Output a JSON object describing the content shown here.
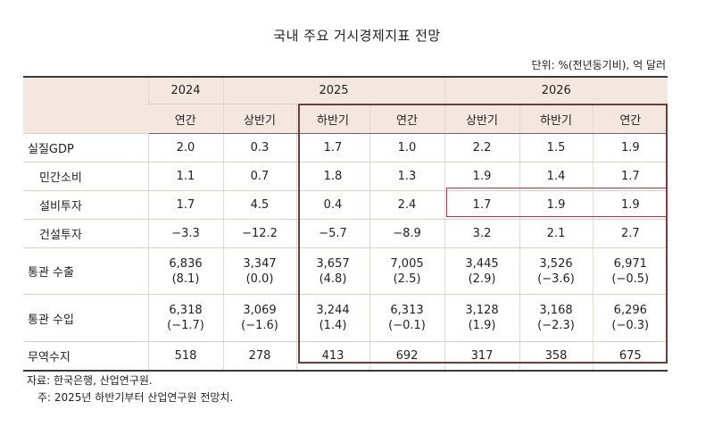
{
  "title": "국내 주요 거시경제지표 전망",
  "unit": "단위: %(전년동기비), 억 달러",
  "header": {
    "years": [
      "2024",
      "2025",
      "2026"
    ],
    "periods": [
      "연간",
      "상반기",
      "하반기",
      "연간",
      "상반기",
      "하반기",
      "연간"
    ]
  },
  "rows": [
    {
      "label": "실질GDP",
      "values": [
        "2.0",
        "0.3",
        "1.7",
        "1.0",
        "2.2",
        "1.5",
        "1.9"
      ]
    },
    {
      "label": "민간소비",
      "values": [
        "1.1",
        "0.7",
        "1.8",
        "1.3",
        "1.9",
        "1.4",
        "1.7"
      ]
    },
    {
      "label": "설비투자",
      "values": [
        "1.7",
        "4.5",
        "0.4",
        "2.4",
        "1.7",
        "1.9",
        "1.9"
      ]
    },
    {
      "label": "건설투자",
      "values": [
        "−3.3",
        "−12.2",
        "−5.7",
        "−8.9",
        "3.2",
        "2.1",
        "2.7"
      ]
    },
    {
      "label": "통관 수출",
      "values": [
        "6,836",
        "3,347",
        "3,657",
        "7,005",
        "3,445",
        "3,526",
        "6,971"
      ],
      "sub": [
        "(8.1)",
        "(0.0)",
        "(4.8)",
        "(2.5)",
        "(2.9)",
        "(−3.6)",
        "(−0.5)"
      ]
    },
    {
      "label": "통관 수입",
      "values": [
        "6,318",
        "3,069",
        "3,244",
        "6,313",
        "3,128",
        "3,168",
        "6,296"
      ],
      "sub": [
        "(−1.7)",
        "(−1.6)",
        "(1.4)",
        "(−0.1)",
        "(1.9)",
        "(−2.3)",
        "(−0.3)"
      ]
    },
    {
      "label": "무역수지",
      "values": [
        "518",
        "278",
        "413",
        "692",
        "317",
        "358",
        "675"
      ]
    }
  ],
  "footer": {
    "source": "자료: 한국은행, 산업연구원.",
    "note": "주: 2025년 하반기부터 산업연구원 전망치."
  },
  "colors": {
    "header_bg": "#f3e7df",
    "forecast_border": "#6b3f3a",
    "highlight_border": "#c0303a"
  }
}
